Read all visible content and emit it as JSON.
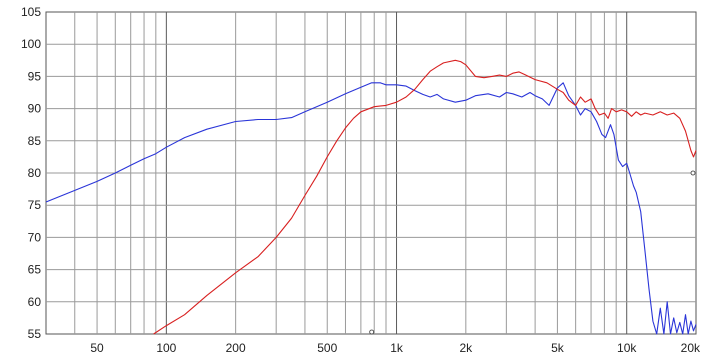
{
  "chart_data": {
    "type": "line",
    "title": "",
    "xlabel": "",
    "ylabel": "",
    "xscale": "log",
    "xlim": [
      30,
      20000
    ],
    "ylim": [
      55,
      105
    ],
    "grid": true,
    "legend": "none",
    "x_tick_labels": [
      {
        "value": 50,
        "label": "50"
      },
      {
        "value": 100,
        "label": "100"
      },
      {
        "value": 200,
        "label": "200"
      },
      {
        "value": 500,
        "label": "500"
      },
      {
        "value": 1000,
        "label": "1k"
      },
      {
        "value": 2000,
        "label": "2k"
      },
      {
        "value": 5000,
        "label": "5k"
      },
      {
        "value": 10000,
        "label": "10k"
      },
      {
        "value": 20000,
        "label": "20k"
      }
    ],
    "y_tick_labels": [
      "55",
      "60",
      "65",
      "70",
      "75",
      "80",
      "85",
      "90",
      "95",
      "100",
      "105"
    ],
    "series": [
      {
        "color": "#2a35d8",
        "points": [
          [
            30,
            75.5
          ],
          [
            40,
            77.3
          ],
          [
            50,
            78.7
          ],
          [
            60,
            80.0
          ],
          [
            70,
            81.2
          ],
          [
            80,
            82.2
          ],
          [
            90,
            83.0
          ],
          [
            100,
            84.0
          ],
          [
            120,
            85.5
          ],
          [
            150,
            86.8
          ],
          [
            200,
            88.0
          ],
          [
            250,
            88.3
          ],
          [
            300,
            88.3
          ],
          [
            350,
            88.6
          ],
          [
            400,
            89.5
          ],
          [
            500,
            91.0
          ],
          [
            600,
            92.3
          ],
          [
            700,
            93.3
          ],
          [
            780,
            94.0
          ],
          [
            850,
            94.0
          ],
          [
            900,
            93.7
          ],
          [
            1000,
            93.7
          ],
          [
            1100,
            93.5
          ],
          [
            1200,
            92.8
          ],
          [
            1300,
            92.2
          ],
          [
            1400,
            91.8
          ],
          [
            1500,
            92.2
          ],
          [
            1600,
            91.5
          ],
          [
            1800,
            91.0
          ],
          [
            2000,
            91.3
          ],
          [
            2200,
            92.0
          ],
          [
            2500,
            92.3
          ],
          [
            2800,
            91.8
          ],
          [
            3000,
            92.5
          ],
          [
            3200,
            92.3
          ],
          [
            3500,
            91.8
          ],
          [
            3800,
            92.5
          ],
          [
            4000,
            92.0
          ],
          [
            4300,
            91.5
          ],
          [
            4600,
            90.5
          ],
          [
            5000,
            93.2
          ],
          [
            5300,
            94.0
          ],
          [
            5600,
            92.0
          ],
          [
            6000,
            90.5
          ],
          [
            6300,
            89.0
          ],
          [
            6600,
            90.0
          ],
          [
            7000,
            89.5
          ],
          [
            7400,
            88.0
          ],
          [
            7800,
            86.0
          ],
          [
            8100,
            85.5
          ],
          [
            8500,
            87.5
          ],
          [
            8800,
            86.0
          ],
          [
            9200,
            82.0
          ],
          [
            9600,
            81.0
          ],
          [
            10000,
            81.5
          ],
          [
            10300,
            80.0
          ],
          [
            10700,
            78.0
          ],
          [
            11000,
            77.0
          ],
          [
            11500,
            74.0
          ],
          [
            12000,
            68.0
          ],
          [
            12500,
            62.0
          ],
          [
            13000,
            57.0
          ],
          [
            13500,
            55.0
          ],
          [
            14000,
            59.0
          ],
          [
            14500,
            55.0
          ],
          [
            15000,
            60.0
          ],
          [
            15500,
            55.0
          ],
          [
            16000,
            57.5
          ],
          [
            16500,
            55.2
          ],
          [
            17000,
            56.8
          ],
          [
            17500,
            55.0
          ],
          [
            18000,
            58.0
          ],
          [
            18500,
            55.0
          ],
          [
            19000,
            57.0
          ],
          [
            19500,
            55.5
          ],
          [
            20000,
            56.5
          ]
        ]
      },
      {
        "color": "#d82020",
        "points": [
          [
            88,
            55.0
          ],
          [
            100,
            56.3
          ],
          [
            120,
            58.0
          ],
          [
            150,
            61.0
          ],
          [
            200,
            64.5
          ],
          [
            250,
            67.0
          ],
          [
            300,
            70.0
          ],
          [
            350,
            73.0
          ],
          [
            400,
            76.5
          ],
          [
            450,
            79.5
          ],
          [
            500,
            82.5
          ],
          [
            550,
            85.0
          ],
          [
            600,
            87.0
          ],
          [
            650,
            88.5
          ],
          [
            700,
            89.5
          ],
          [
            800,
            90.3
          ],
          [
            900,
            90.5
          ],
          [
            1000,
            91.0
          ],
          [
            1100,
            91.8
          ],
          [
            1200,
            93.0
          ],
          [
            1300,
            94.5
          ],
          [
            1400,
            95.8
          ],
          [
            1500,
            96.5
          ],
          [
            1600,
            97.1
          ],
          [
            1800,
            97.5
          ],
          [
            1900,
            97.3
          ],
          [
            2000,
            96.8
          ],
          [
            2200,
            95.0
          ],
          [
            2400,
            94.8
          ],
          [
            2600,
            95.0
          ],
          [
            2800,
            95.2
          ],
          [
            3000,
            95.0
          ],
          [
            3200,
            95.5
          ],
          [
            3400,
            95.7
          ],
          [
            3600,
            95.3
          ],
          [
            4000,
            94.5
          ],
          [
            4500,
            94.0
          ],
          [
            5000,
            93.0
          ],
          [
            5300,
            92.5
          ],
          [
            5600,
            91.3
          ],
          [
            6000,
            90.5
          ],
          [
            6300,
            91.8
          ],
          [
            6600,
            91.0
          ],
          [
            7000,
            91.5
          ],
          [
            7300,
            90.0
          ],
          [
            7600,
            89.0
          ],
          [
            8000,
            89.3
          ],
          [
            8300,
            88.5
          ],
          [
            8600,
            90.0
          ],
          [
            9000,
            89.5
          ],
          [
            9500,
            89.8
          ],
          [
            10000,
            89.5
          ],
          [
            10500,
            88.8
          ],
          [
            11000,
            89.5
          ],
          [
            11500,
            89.0
          ],
          [
            12000,
            89.3
          ],
          [
            13000,
            89.0
          ],
          [
            14000,
            89.5
          ],
          [
            15000,
            89.0
          ],
          [
            16000,
            89.3
          ],
          [
            17000,
            88.5
          ],
          [
            18000,
            86.5
          ],
          [
            19000,
            83.5
          ],
          [
            19500,
            82.5
          ],
          [
            20000,
            83.5
          ]
        ]
      }
    ]
  }
}
